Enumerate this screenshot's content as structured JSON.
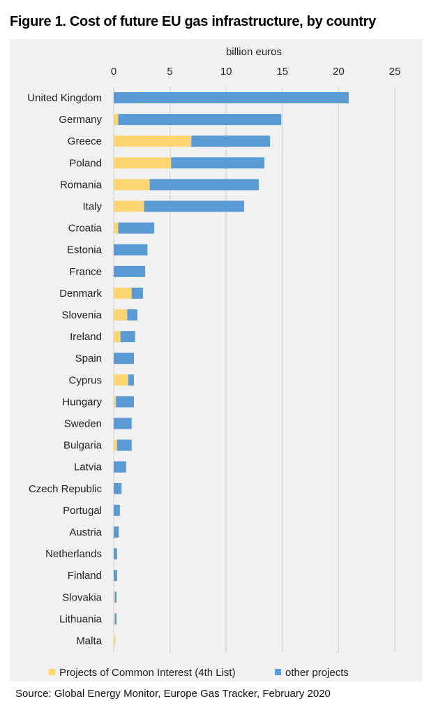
{
  "title": "Figure 1. Cost of future EU gas infrastructure, by country",
  "source": "Source: Global Energy Monitor, Europe Gas Tracker, February 2020",
  "colors": {
    "pci": "#fdd672",
    "other": "#5b9bd5",
    "grid": "#d9d9d9",
    "background": "#f1f1f1"
  },
  "chart_data": {
    "type": "bar",
    "orientation": "horizontal",
    "stacked": true,
    "xlabel": "billion euros",
    "xlim": [
      0,
      25
    ],
    "xticks": [
      0,
      5,
      10,
      15,
      20,
      25
    ],
    "grid": true,
    "legend_position": "bottom",
    "categories": [
      "United Kingdom",
      "Germany",
      "Greece",
      "Poland",
      "Romania",
      "Italy",
      "Croatia",
      "Estonia",
      "France",
      "Denmark",
      "Slovenia",
      "Ireland",
      "Spain",
      "Cyprus",
      "Hungary",
      "Sweden",
      "Bulgaria",
      "Latvia",
      "Czech Republic",
      "Portugal",
      "Austria",
      "Netherlands",
      "Finland",
      "Slovakia",
      "Lithuania",
      "Malta"
    ],
    "series": [
      {
        "name": "Projects of Common Interest (4th List)",
        "color": "#fdd672",
        "values": [
          0,
          0.4,
          6.9,
          5.1,
          3.2,
          2.7,
          0.4,
          0,
          0,
          1.6,
          1.2,
          0.6,
          0,
          1.3,
          0.2,
          0,
          0.3,
          0,
          0,
          0,
          0,
          0,
          0,
          0.1,
          0.1,
          0.15
        ]
      },
      {
        "name": "other projects",
        "color": "#5b9bd5",
        "values": [
          20.9,
          14.5,
          7.0,
          8.3,
          9.7,
          8.9,
          3.2,
          3.0,
          2.8,
          1.0,
          0.9,
          1.3,
          1.8,
          0.5,
          1.6,
          1.6,
          1.3,
          1.1,
          0.7,
          0.55,
          0.45,
          0.3,
          0.3,
          0.15,
          0.15,
          0
        ]
      }
    ]
  }
}
